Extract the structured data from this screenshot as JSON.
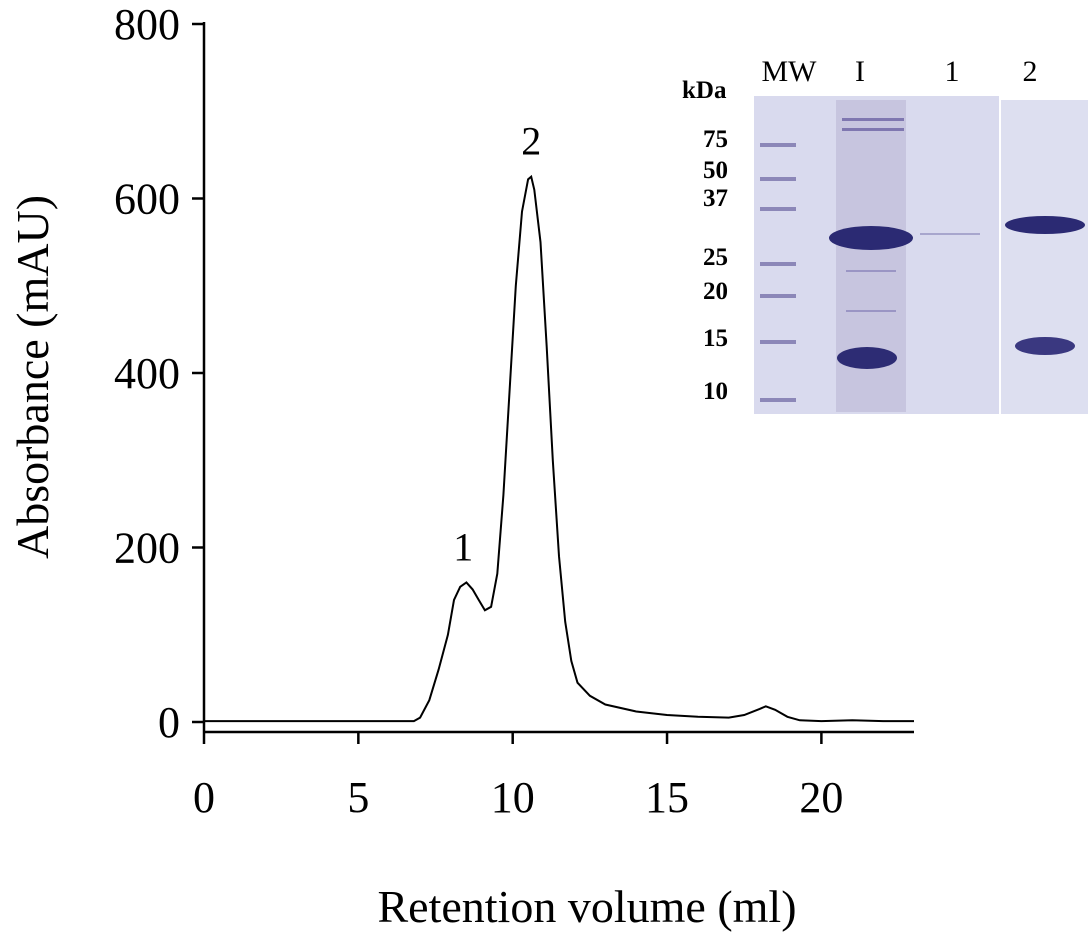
{
  "chart_data": {
    "type": "line",
    "xlabel": "Retention volume (ml)",
    "ylabel": "Absorbance (mAU)",
    "xlim": [
      0,
      23
    ],
    "ylim": [
      0,
      800
    ],
    "xticks": [
      0,
      5,
      10,
      15,
      20
    ],
    "yticks": [
      0,
      200,
      400,
      600,
      800
    ],
    "xtick_labels": [
      "0",
      "5",
      "10",
      "15",
      "20"
    ],
    "ytick_labels": [
      "0",
      "200",
      "400",
      "600",
      "800"
    ],
    "grid": false,
    "series": [
      {
        "x": [
          0,
          6.8,
          7.0,
          7.3,
          7.6,
          7.9,
          8.1,
          8.3,
          8.5,
          8.7,
          8.9,
          9.1,
          9.3,
          9.5,
          9.7,
          9.9,
          10.1,
          10.3,
          10.5,
          10.6,
          10.7,
          10.9,
          11.1,
          11.3,
          11.5,
          11.7,
          11.9,
          12.1,
          12.5,
          13.0,
          14.0,
          15.0,
          16.0,
          17.0,
          17.5,
          18.0,
          18.2,
          18.5,
          18.9,
          19.3,
          20.0,
          21.0,
          22.0,
          23.0
        ],
        "y": [
          1,
          1,
          5,
          25,
          60,
          100,
          140,
          155,
          160,
          152,
          140,
          128,
          132,
          170,
          260,
          380,
          500,
          585,
          622,
          625,
          610,
          550,
          430,
          300,
          190,
          115,
          70,
          45,
          30,
          20,
          12,
          8,
          6,
          5,
          8,
          15,
          18,
          14,
          6,
          2,
          1,
          2,
          1,
          1
        ]
      }
    ],
    "annotations": [
      {
        "text": "1",
        "x": 8.4,
        "y": 160
      },
      {
        "text": "2",
        "x": 10.6,
        "y": 625
      }
    ]
  },
  "gel": {
    "unit_label": "kDa",
    "lane_labels": [
      "MW",
      "I",
      "1",
      "2"
    ],
    "marker_labels": [
      "75",
      "50",
      "37",
      "25",
      "20",
      "15",
      "10"
    ]
  }
}
